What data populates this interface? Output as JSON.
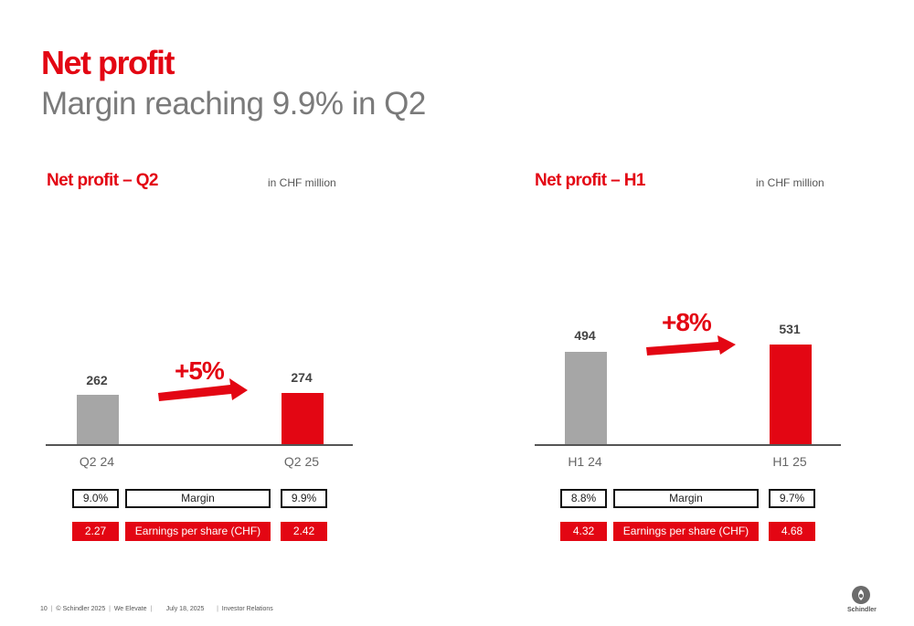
{
  "header": {
    "title": "Net profit",
    "subtitle": "Margin reaching 9.9% in Q2"
  },
  "panels": [
    {
      "title": "Net profit – Q2",
      "unit": "in CHF million",
      "growth": "+5%",
      "margin_label": "Margin",
      "eps_label": "Earnings per share (CHF)",
      "columns": [
        {
          "label": "Q2 24",
          "value_label": "262",
          "margin": "9.0%",
          "eps": "2.27"
        },
        {
          "label": "Q2 25",
          "value_label": "274",
          "margin": "9.9%",
          "eps": "2.42"
        }
      ]
    },
    {
      "title": "Net profit – H1",
      "unit": "in CHF million",
      "growth": "+8%",
      "margin_label": "Margin",
      "eps_label": "Earnings per share (CHF)",
      "columns": [
        {
          "label": "H1 24",
          "value_label": "494",
          "margin": "8.8%",
          "eps": "4.32"
        },
        {
          "label": "H1 25",
          "value_label": "531",
          "margin": "9.7%",
          "eps": "4.68"
        }
      ]
    }
  ],
  "chart_data": [
    {
      "type": "bar",
      "title": "Net profit – Q2",
      "ylabel": "in CHF million",
      "categories": [
        "Q2 24",
        "Q2 25"
      ],
      "values": [
        262,
        274
      ],
      "colors": [
        "#a6a6a6",
        "#e30613"
      ]
    },
    {
      "type": "bar",
      "title": "Net profit – H1",
      "ylabel": "in CHF million",
      "categories": [
        "H1 24",
        "H1 25"
      ],
      "values": [
        494,
        531
      ],
      "colors": [
        "#a6a6a6",
        "#e30613"
      ]
    }
  ],
  "footer": {
    "page": "10",
    "copyright": "© Schindler 2025",
    "slogan": "We Elevate",
    "date": "July 18, 2025",
    "department": "Investor Relations",
    "sep": "|"
  },
  "logo": {
    "text": "Schindler",
    "icon": "schindler-logo-icon"
  },
  "colors": {
    "accent": "#e30613",
    "gray_bar": "#a6a6a6",
    "subtitle": "#7a7a7a"
  }
}
